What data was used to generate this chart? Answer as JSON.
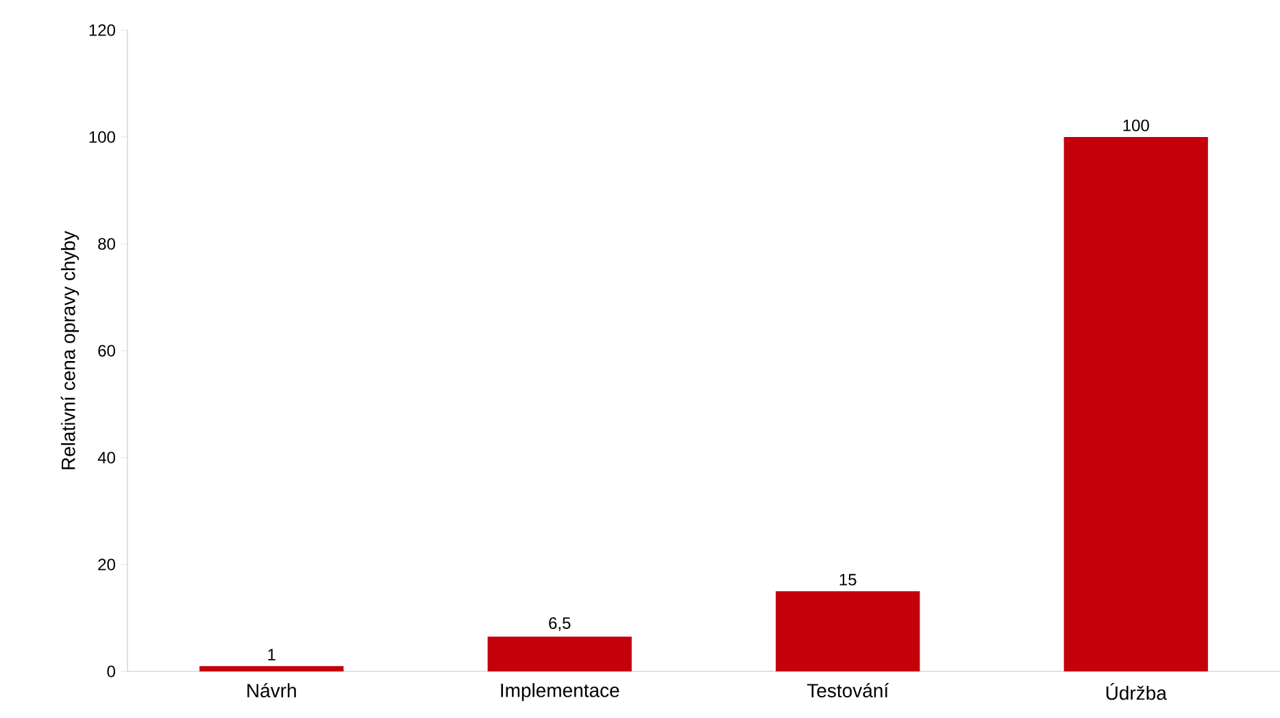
{
  "chart_data": {
    "type": "bar",
    "ylabel": "Relativní cena opravy chyby",
    "categories": [
      "Návrh",
      "Implementace",
      "Testování",
      "Údržba"
    ],
    "values": [
      1,
      6.5,
      15,
      100
    ],
    "value_labels": [
      "1",
      "6,5",
      "15",
      "100"
    ],
    "color": "#c4000b",
    "ylim": [
      0,
      120
    ],
    "yticks": [
      0,
      20,
      40,
      60,
      80,
      100,
      120
    ],
    "grid": false
  }
}
